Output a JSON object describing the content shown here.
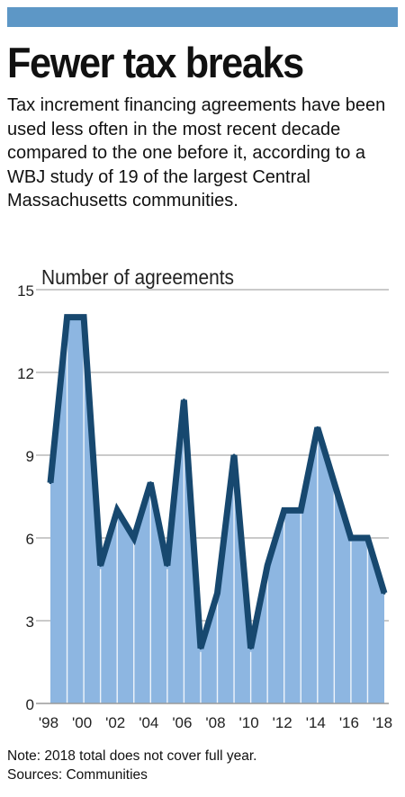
{
  "header": {
    "accent_color": "#5d97c6"
  },
  "chart_data": {
    "type": "area",
    "title": "Fewer tax breaks",
    "subtitle": "Tax increment financing agreements have been used less often in the most recent decade compared to the one before it, according to a WBJ study of 19 of the largest Central Massachusetts communities.",
    "ylabel": "Number of agreements",
    "xlabel": "",
    "x": [
      1998,
      1999,
      2000,
      2001,
      2002,
      2003,
      2004,
      2005,
      2006,
      2007,
      2008,
      2009,
      2010,
      2011,
      2012,
      2013,
      2014,
      2015,
      2016,
      2017,
      2018
    ],
    "values": [
      8,
      14,
      14,
      5,
      7,
      6,
      8,
      5,
      11,
      2,
      4,
      9,
      2,
      5,
      7,
      7,
      10,
      8,
      6,
      6,
      4
    ],
    "xticks": [
      1998,
      2000,
      2002,
      2004,
      2006,
      2008,
      2010,
      2012,
      2014,
      2016,
      2018
    ],
    "xtick_labels": [
      "'98",
      "'00",
      "'02",
      "'04",
      "'06",
      "'08",
      "'10",
      "'12",
      "'14",
      "'16",
      "'18"
    ],
    "yticks": [
      0,
      3,
      6,
      9,
      12,
      15
    ],
    "ytick_labels": [
      "0",
      "3",
      "6",
      "9",
      "12",
      "15"
    ],
    "ylim": [
      0,
      15
    ],
    "xlim": [
      1998,
      2018
    ],
    "grid": true,
    "line_color": "#17486f",
    "fill_color": "#8db6e1",
    "grid_color": "#b9b9b9"
  },
  "footer": {
    "note": "Note: 2018 total does not cover full year.",
    "sources": "Sources: Communities"
  }
}
